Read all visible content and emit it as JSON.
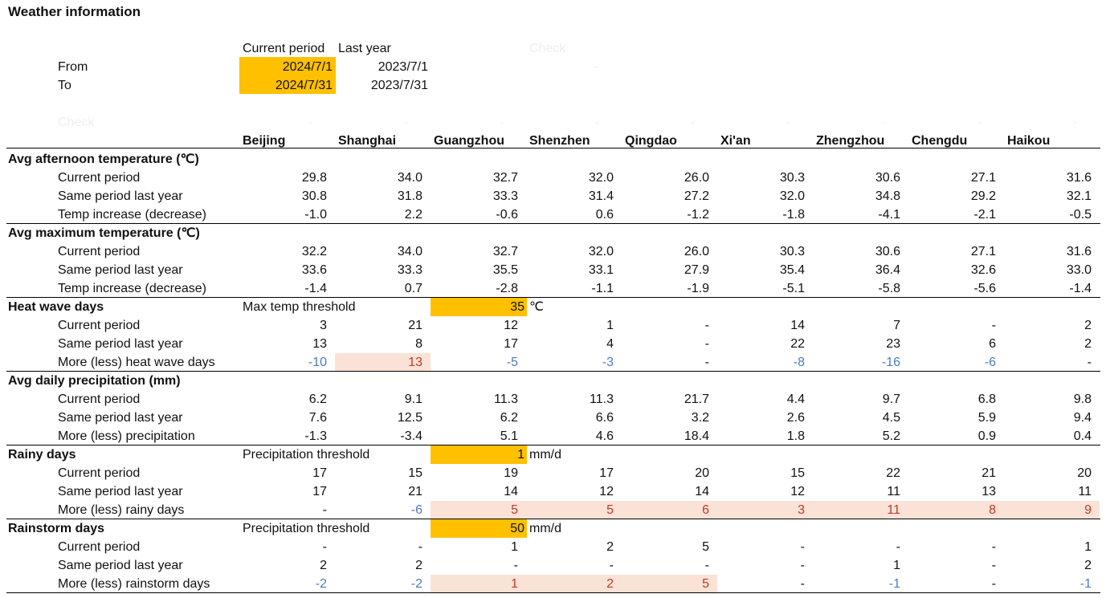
{
  "title": "Weather information",
  "period_header": {
    "current": "Current period",
    "last": "Last year",
    "check": "Check",
    "check_dash": "-"
  },
  "from": {
    "label": "From",
    "current": "2024/7/1",
    "last": "2023/7/1"
  },
  "to": {
    "label": "To",
    "current": "2024/7/31",
    "last": "2023/7/31"
  },
  "check_label": "Check",
  "cities": [
    "Beijing",
    "Shanghai",
    "Guangzhou",
    "Shenzhen",
    "Qingdao",
    "Xi'an",
    "Zhengzhou",
    "Chengdu",
    "Haikou"
  ],
  "sections": [
    {
      "title": "Avg afternoon temperature (℃)",
      "rows": [
        {
          "label": "Current period",
          "values": [
            "29.8",
            "34.0",
            "32.7",
            "32.0",
            "26.0",
            "30.3",
            "30.6",
            "27.1",
            "31.6"
          ]
        },
        {
          "label": "Same period last year",
          "values": [
            "30.8",
            "31.8",
            "33.3",
            "31.4",
            "27.2",
            "32.0",
            "34.8",
            "29.2",
            "32.1"
          ]
        },
        {
          "label": "Temp increase (decrease)",
          "values": [
            "-1.0",
            "2.2",
            "-0.6",
            "0.6",
            "-1.2",
            "-1.8",
            "-4.1",
            "-2.1",
            "-0.5"
          ]
        }
      ]
    },
    {
      "title": "Avg maximum temperature (℃)",
      "rows": [
        {
          "label": "Current period",
          "values": [
            "32.2",
            "34.0",
            "32.7",
            "32.0",
            "26.0",
            "30.3",
            "30.6",
            "27.1",
            "31.6"
          ]
        },
        {
          "label": "Same period last year",
          "values": [
            "33.6",
            "33.3",
            "35.5",
            "33.1",
            "27.9",
            "35.4",
            "36.4",
            "32.6",
            "33.0"
          ]
        },
        {
          "label": "Temp increase (decrease)",
          "values": [
            "-1.4",
            "0.7",
            "-2.8",
            "-1.1",
            "-1.9",
            "-5.1",
            "-5.8",
            "-5.6",
            "-1.4"
          ]
        }
      ]
    },
    {
      "title": "Heat wave days",
      "threshold": {
        "label": "Max temp threshold",
        "value": "35",
        "unit": "℃"
      },
      "rows": [
        {
          "label": "Current period",
          "values": [
            "3",
            "21",
            "12",
            "1",
            "-",
            "14",
            "7",
            "-",
            "2"
          ]
        },
        {
          "label": "Same period last year",
          "values": [
            "13",
            "8",
            "17",
            "4",
            "-",
            "22",
            "23",
            "6",
            "2"
          ]
        },
        {
          "label": "More (less) heat wave days",
          "values": [
            "-10",
            "13",
            "-5",
            "-3",
            "-",
            "-8",
            "-16",
            "-6",
            "-"
          ],
          "colored": true
        }
      ]
    },
    {
      "title": "Avg daily precipitation (mm)",
      "rows": [
        {
          "label": "Current period",
          "values": [
            "6.2",
            "9.1",
            "11.3",
            "11.3",
            "21.7",
            "4.4",
            "9.7",
            "6.8",
            "9.8"
          ]
        },
        {
          "label": "Same period last year",
          "values": [
            "7.6",
            "12.5",
            "6.2",
            "6.6",
            "3.2",
            "2.6",
            "4.5",
            "5.9",
            "9.4"
          ]
        },
        {
          "label": "More (less) precipitation",
          "values": [
            "-1.3",
            "-3.4",
            "5.1",
            "4.6",
            "18.4",
            "1.8",
            "5.2",
            "0.9",
            "0.4"
          ]
        }
      ]
    },
    {
      "title": "Rainy days",
      "threshold": {
        "label": "Precipitation threshold",
        "value": "1",
        "unit": "mm/d"
      },
      "rows": [
        {
          "label": "Current period",
          "values": [
            "17",
            "15",
            "19",
            "17",
            "20",
            "15",
            "22",
            "21",
            "20"
          ]
        },
        {
          "label": "Same period last year",
          "values": [
            "17",
            "21",
            "14",
            "12",
            "14",
            "12",
            "11",
            "13",
            "11"
          ]
        },
        {
          "label": "More (less) rainy days",
          "values": [
            "-",
            "-6",
            "5",
            "5",
            "6",
            "3",
            "11",
            "8",
            "9"
          ],
          "colored": true
        }
      ]
    },
    {
      "title": "Rainstorm days",
      "threshold": {
        "label": "Precipitation threshold",
        "value": "50",
        "unit": "mm/d"
      },
      "rows": [
        {
          "label": "Current period",
          "values": [
            "-",
            "-",
            "1",
            "2",
            "5",
            "-",
            "-",
            "-",
            "1"
          ]
        },
        {
          "label": "Same period last year",
          "values": [
            "2",
            "2",
            "-",
            "-",
            "-",
            "-",
            "1",
            "-",
            "2"
          ]
        },
        {
          "label": "More (less) rainstorm days",
          "values": [
            "-2",
            "-2",
            "1",
            "2",
            "5",
            "-",
            "-1",
            "-",
            "-1"
          ],
          "colored": true
        }
      ]
    }
  ],
  "colors": {
    "highlight_input": "#ffc000",
    "increase_fill": "#fbe2d6",
    "increase_text": "#c0392b",
    "decrease_text": "#4f7ac1"
  }
}
